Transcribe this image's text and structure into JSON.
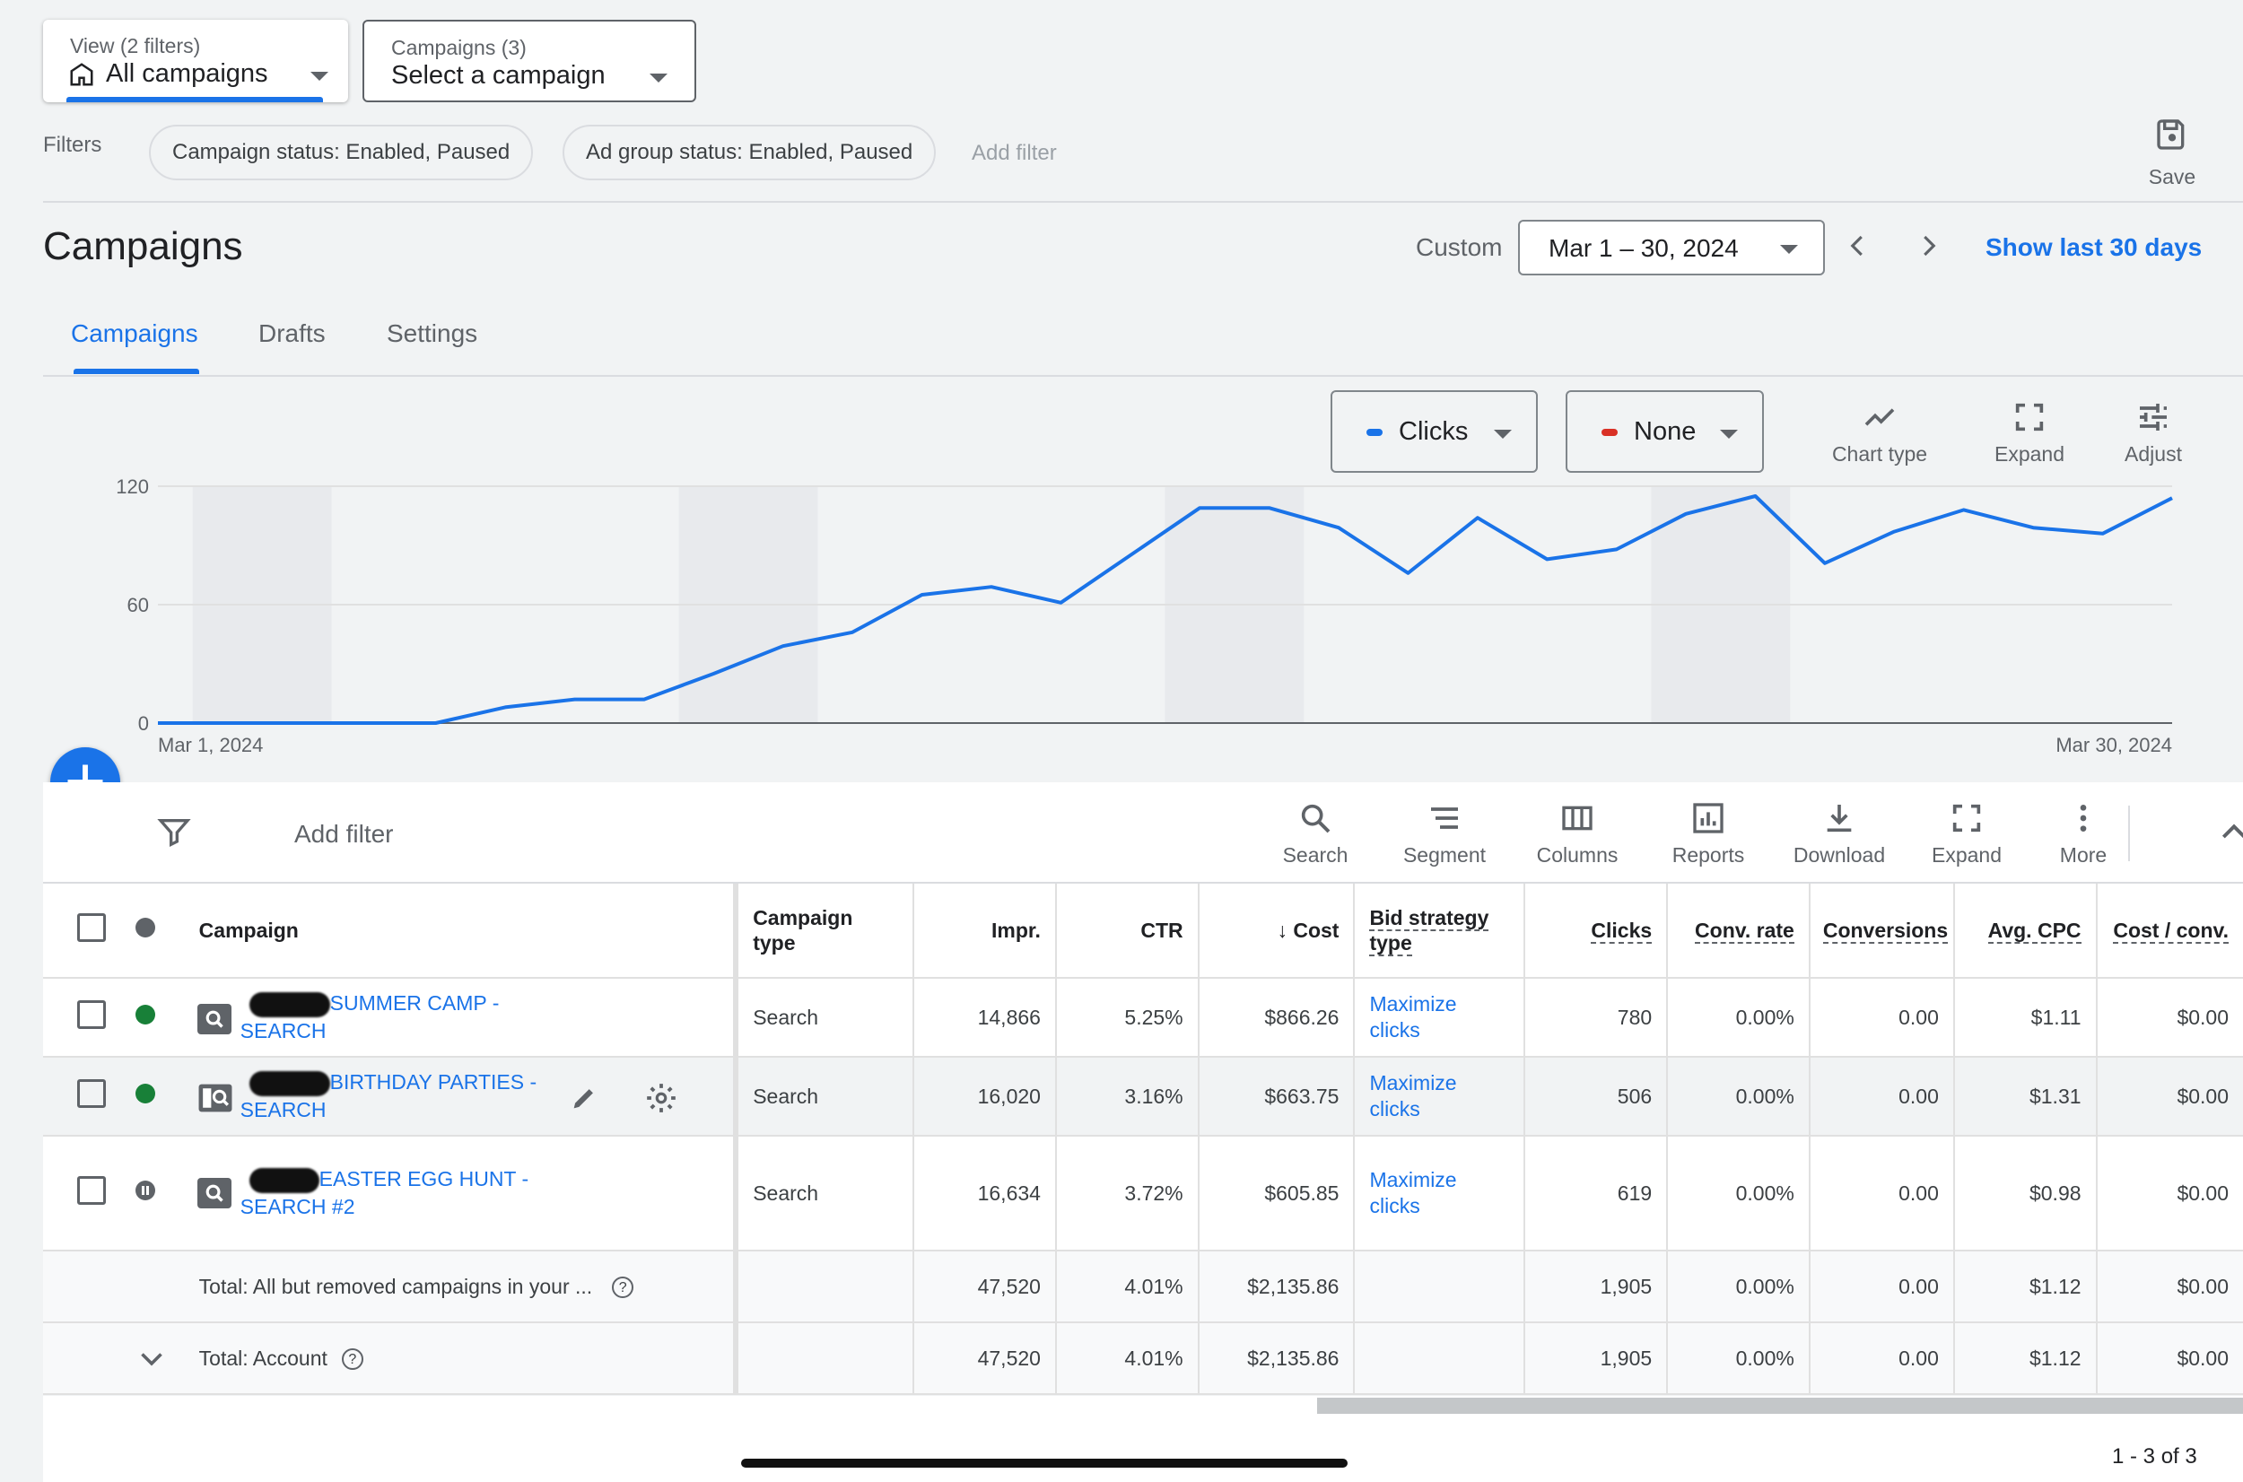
{
  "header": {
    "view_label": "View (2 filters)",
    "view_value": "All campaigns",
    "campaigns_label": "Campaigns (3)",
    "campaigns_value": "Select a campaign"
  },
  "filters": {
    "label": "Filters",
    "chips": [
      "Campaign status: Enabled, Paused",
      "Ad group status: Enabled, Paused"
    ],
    "add_filter": "Add filter",
    "save": "Save"
  },
  "page": {
    "title": "Campaigns",
    "custom_label": "Custom",
    "date_range": "Mar 1 – 30, 2024",
    "show_last": "Show last 30 days"
  },
  "tabs": [
    {
      "label": "Campaigns",
      "active": true
    },
    {
      "label": "Drafts",
      "active": false
    },
    {
      "label": "Settings",
      "active": false
    }
  ],
  "chart_controls": {
    "metric1": "Clicks",
    "metric1_color": "#1a73e8",
    "metric2": "None",
    "metric2_color": "#d93025",
    "chart_type": "Chart type",
    "expand": "Expand",
    "adjust": "Adjust"
  },
  "chart_data": {
    "type": "line",
    "series": [
      {
        "name": "Clicks",
        "values": [
          0,
          0,
          0,
          0,
          0,
          8,
          12,
          12,
          25,
          39,
          46,
          65,
          69,
          61,
          85,
          109,
          109,
          99,
          76,
          104,
          83,
          88,
          106,
          115,
          81,
          97,
          108,
          99,
          96,
          114
        ]
      }
    ],
    "y_ticks": [
      "0",
      "60",
      "120"
    ],
    "ylim": [
      0,
      120
    ],
    "x_start_label": "Mar 1, 2024",
    "x_end_label": "Mar 30, 2024"
  },
  "table_toolbar": {
    "add_filter": "Add filter",
    "tools": [
      "Search",
      "Segment",
      "Columns",
      "Reports",
      "Download",
      "Expand",
      "More"
    ]
  },
  "table": {
    "headers": {
      "campaign": "Campaign",
      "campaign_type": "Campaign type",
      "impr": "Impr.",
      "ctr": "CTR",
      "cost": "Cost",
      "bid_strategy": "Bid strategy type",
      "clicks": "Clicks",
      "conv_rate": "Conv. rate",
      "conversions": "Conversions",
      "avg_cpc": "Avg. CPC",
      "cost_conv": "Cost / conv."
    },
    "rows": [
      {
        "name_line1": "SUMMER CAMP -",
        "name_line2": "SEARCH",
        "status": "enabled",
        "type": "Search",
        "impr": "14,866",
        "ctr": "5.25%",
        "cost": "$866.26",
        "bid1": "Maximize",
        "bid2": "clicks",
        "clicks": "780",
        "conv_rate": "0.00%",
        "conversions": "0.00",
        "avg_cpc": "$1.11",
        "cost_conv": "$0.00"
      },
      {
        "name_line1": "BIRTHDAY PARTIES -",
        "name_line2": "SEARCH",
        "status": "enabled",
        "type": "Search",
        "impr": "16,020",
        "ctr": "3.16%",
        "cost": "$663.75",
        "bid1": "Maximize",
        "bid2": "clicks",
        "clicks": "506",
        "conv_rate": "0.00%",
        "conversions": "0.00",
        "avg_cpc": "$1.31",
        "cost_conv": "$0.00"
      },
      {
        "name_line1": "EASTER EGG HUNT -",
        "name_line2": "SEARCH #2",
        "status": "paused",
        "type": "Search",
        "impr": "16,634",
        "ctr": "3.72%",
        "cost": "$605.85",
        "bid1": "Maximize",
        "bid2": "clicks",
        "clicks": "619",
        "conv_rate": "0.00%",
        "conversions": "0.00",
        "avg_cpc": "$0.98",
        "cost_conv": "$0.00"
      }
    ],
    "totals": [
      {
        "label": "Total: All but removed campaigns in your ...",
        "impr": "47,520",
        "ctr": "4.01%",
        "cost": "$2,135.86",
        "clicks": "1,905",
        "conv_rate": "0.00%",
        "conversions": "0.00",
        "avg_cpc": "$1.12",
        "cost_conv": "$0.00"
      },
      {
        "label": "Total: Account",
        "impr": "47,520",
        "ctr": "4.01%",
        "cost": "$2,135.86",
        "clicks": "1,905",
        "conv_rate": "0.00%",
        "conversions": "0.00",
        "avg_cpc": "$1.12",
        "cost_conv": "$0.00"
      }
    ],
    "pagination": "1 - 3 of 3"
  }
}
